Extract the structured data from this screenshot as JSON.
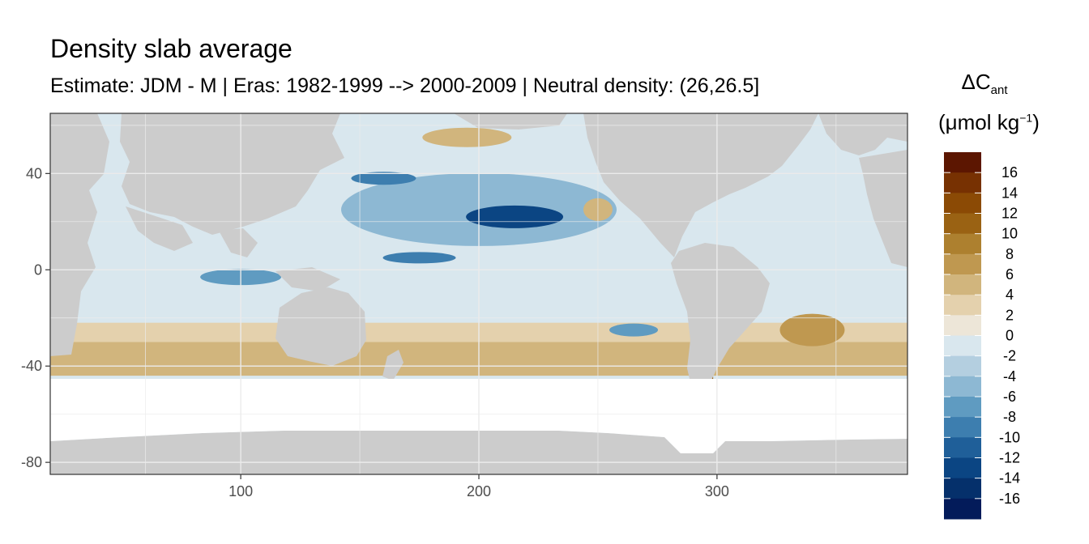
{
  "title": "Density slab average",
  "subtitle": "Estimate: JDM - M | Eras: 1982-1999 --> 2000-2009 | Neutral density: (26,26.5]",
  "legend": {
    "symbol": "ΔC",
    "subscript": "ant",
    "unit_base": "(μmol kg",
    "unit_exp": "−1",
    "unit_close": ")",
    "labels": [
      "16",
      "14",
      "12",
      "10",
      "8",
      "6",
      "4",
      "2",
      "0",
      "-2",
      "-4",
      "-6",
      "-8",
      "-10",
      "-12",
      "-14",
      "-16"
    ],
    "colors": [
      "#5c1601",
      "#773102",
      "#8b4a05",
      "#9a6213",
      "#ad802f",
      "#bf9850",
      "#d1b57d",
      "#e4d1ad",
      "#ede6d8",
      "#d9e7ee",
      "#b4cfe0",
      "#8db8d3",
      "#5f9bc1",
      "#3d7eaf",
      "#1f5f99",
      "#0b4583",
      "#05306b",
      "#031b5a"
    ]
  },
  "chart_data": {
    "type": "heatmap",
    "title": "Density slab average",
    "subtitle": "Estimate: JDM - M | Eras: 1982-1999 --> 2000-2009 | Neutral density: (26,26.5]",
    "xlabel": "",
    "ylabel": "",
    "xlim": [
      20,
      380
    ],
    "ylim": [
      -85,
      65
    ],
    "x_ticks": [
      100,
      200,
      300
    ],
    "y_ticks": [
      40,
      0,
      -40,
      -80
    ],
    "grid": true,
    "legend_position": "right",
    "colorbar_range": [
      -18,
      18
    ],
    "colorbar_breaks": [
      16,
      14,
      12,
      10,
      8,
      6,
      4,
      2,
      0,
      -2,
      -4,
      -6,
      -8,
      -10,
      -12,
      -14,
      -16
    ],
    "land_color": "#cccccc",
    "no_data_color": "#ffffff"
  }
}
